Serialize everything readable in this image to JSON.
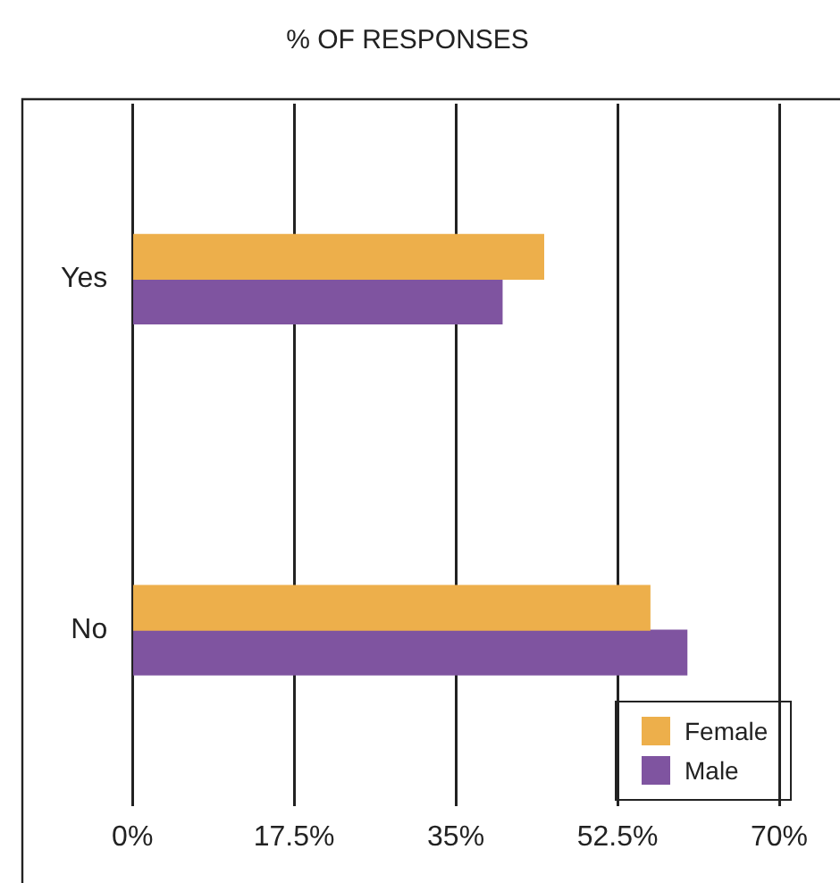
{
  "chart_data": {
    "type": "bar",
    "orientation": "horizontal",
    "title": "% OF RESPONSES",
    "categories": [
      "Yes",
      "No"
    ],
    "series": [
      {
        "name": "Female",
        "color": "#edaf4b",
        "values": [
          44.5,
          56
        ]
      },
      {
        "name": "Male",
        "color": "#7f54a0",
        "values": [
          40,
          60
        ]
      }
    ],
    "xlim": [
      0,
      70
    ],
    "xticks": [
      {
        "value": 0,
        "label": "0%"
      },
      {
        "value": 17.5,
        "label": "17.5%"
      },
      {
        "value": 35,
        "label": "35%"
      },
      {
        "value": 52.5,
        "label": "52.5%"
      },
      {
        "value": 70,
        "label": "70%"
      }
    ],
    "grid": "x",
    "legend": "bottom right"
  }
}
